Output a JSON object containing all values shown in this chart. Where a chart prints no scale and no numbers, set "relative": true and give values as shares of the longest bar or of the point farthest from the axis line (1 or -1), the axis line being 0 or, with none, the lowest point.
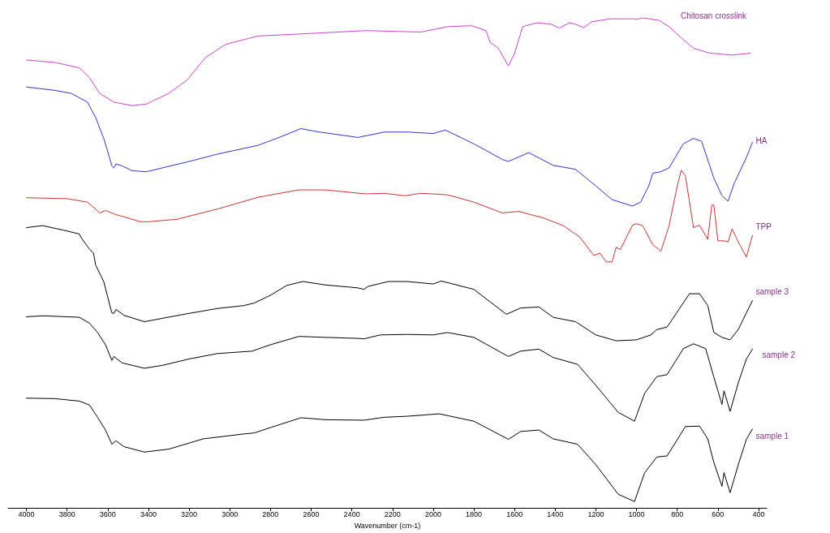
{
  "chart_data": {
    "type": "line",
    "relative": true,
    "xlabel": "Wavenumber (cm-1)",
    "xlim": [
      4090,
      360
    ],
    "xticks": [
      4000,
      3800,
      3600,
      3400,
      3200,
      3000,
      2800,
      2600,
      2400,
      2200,
      2000,
      1800,
      1600,
      1400,
      1200,
      1000,
      800,
      600,
      400
    ],
    "series": [
      {
        "name": "Chitosan crosslink",
        "color": "#cc44cc",
        "x": [
          4000,
          3860,
          3740,
          3690,
          3640,
          3570,
          3480,
          3410,
          3300,
          3210,
          3120,
          3020,
          2860,
          2660,
          2330,
          2060,
          1930,
          1810,
          1740,
          1720,
          1680,
          1630,
          1600,
          1560,
          1490,
          1420,
          1380,
          1330,
          1300,
          1260,
          1220,
          1130,
          1020,
          1000,
          970,
          890,
          840,
          780,
          720,
          640,
          530,
          440
        ],
        "values": [
          0.914,
          0.909,
          0.898,
          0.878,
          0.846,
          0.828,
          0.821,
          0.824,
          0.846,
          0.873,
          0.919,
          0.946,
          0.963,
          0.967,
          0.974,
          0.971,
          0.982,
          0.984,
          0.974,
          0.95,
          0.938,
          0.902,
          0.927,
          0.982,
          0.99,
          0.987,
          0.979,
          0.99,
          0.987,
          0.98,
          0.992,
          0.998,
          0.998,
          0.997,
          1.0,
          0.995,
          0.982,
          0.959,
          0.938,
          0.928,
          0.924,
          0.928
        ]
      },
      {
        "name": "HA",
        "color": "#3333cc",
        "x": [
          4000,
          3860,
          3780,
          3700,
          3660,
          3620,
          3600,
          3580,
          3570,
          3560,
          3530,
          3480,
          3410,
          3330,
          3200,
          3060,
          2860,
          2770,
          2650,
          2560,
          2370,
          2240,
          2130,
          2000,
          1940,
          1800,
          1660,
          1630,
          1530,
          1410,
          1300,
          1200,
          1120,
          1020,
          980,
          940,
          920,
          880,
          840,
          770,
          720,
          680,
          620,
          580,
          550,
          520,
          460,
          430
        ],
        "values": [
          0.859,
          0.852,
          0.846,
          0.828,
          0.797,
          0.754,
          0.727,
          0.698,
          0.694,
          0.702,
          0.698,
          0.688,
          0.686,
          0.694,
          0.707,
          0.722,
          0.74,
          0.754,
          0.774,
          0.767,
          0.756,
          0.767,
          0.767,
          0.764,
          0.771,
          0.743,
          0.711,
          0.707,
          0.725,
          0.699,
          0.691,
          0.657,
          0.629,
          0.616,
          0.624,
          0.657,
          0.683,
          0.686,
          0.694,
          0.743,
          0.754,
          0.748,
          0.673,
          0.637,
          0.626,
          0.662,
          0.715,
          0.746
        ]
      },
      {
        "name": "TPP",
        "color": "#cc3333",
        "x": [
          4000,
          3800,
          3700,
          3660,
          3640,
          3610,
          3570,
          3440,
          3400,
          3260,
          3060,
          2860,
          2660,
          2530,
          2340,
          2320,
          2240,
          2140,
          2060,
          1930,
          1800,
          1660,
          1580,
          1460,
          1360,
          1280,
          1210,
          1180,
          1150,
          1120,
          1100,
          1080,
          1020,
          1000,
          970,
          920,
          880,
          840,
          800,
          780,
          760,
          720,
          690,
          650,
          630,
          620,
          600,
          570,
          550,
          530,
          500,
          460,
          430
        ],
        "values": [
          0.633,
          0.631,
          0.624,
          0.61,
          0.602,
          0.607,
          0.6,
          0.584,
          0.584,
          0.589,
          0.61,
          0.634,
          0.649,
          0.649,
          0.641,
          0.641,
          0.642,
          0.637,
          0.642,
          0.639,
          0.624,
          0.602,
          0.605,
          0.592,
          0.576,
          0.553,
          0.515,
          0.52,
          0.502,
          0.502,
          0.532,
          0.527,
          0.577,
          0.58,
          0.576,
          0.537,
          0.524,
          0.576,
          0.657,
          0.689,
          0.678,
          0.572,
          0.577,
          0.548,
          0.618,
          0.618,
          0.545,
          0.545,
          0.543,
          0.569,
          0.543,
          0.512,
          0.556
        ]
      },
      {
        "name": "sample 3",
        "color": "#000000",
        "x": [
          4000,
          3920,
          3820,
          3740,
          3730,
          3690,
          3670,
          3660,
          3620,
          3580,
          3570,
          3560,
          3520,
          3420,
          3330,
          3200,
          3060,
          2930,
          2880,
          2800,
          2720,
          2640,
          2530,
          2370,
          2340,
          2320,
          2220,
          2130,
          2000,
          1960,
          1800,
          1640,
          1570,
          1480,
          1410,
          1300,
          1200,
          1100,
          1000,
          930,
          900,
          850,
          740,
          690,
          650,
          620,
          580,
          540,
          500,
          460,
          430
        ],
        "values": [
          0.572,
          0.576,
          0.567,
          0.559,
          0.551,
          0.528,
          0.52,
          0.496,
          0.462,
          0.398,
          0.397,
          0.405,
          0.393,
          0.38,
          0.387,
          0.397,
          0.407,
          0.413,
          0.418,
          0.434,
          0.454,
          0.462,
          0.455,
          0.449,
          0.446,
          0.452,
          0.462,
          0.462,
          0.457,
          0.463,
          0.446,
          0.395,
          0.408,
          0.41,
          0.389,
          0.38,
          0.353,
          0.341,
          0.343,
          0.353,
          0.364,
          0.369,
          0.437,
          0.437,
          0.413,
          0.358,
          0.348,
          0.343,
          0.364,
          0.398,
          0.423
        ]
      },
      {
        "name": "sample 2",
        "color": "#000000",
        "x": [
          4000,
          3920,
          3740,
          3690,
          3650,
          3610,
          3580,
          3570,
          3530,
          3420,
          3330,
          3200,
          3060,
          2890,
          2800,
          2660,
          2530,
          2370,
          2340,
          2260,
          2130,
          2000,
          1930,
          1800,
          1630,
          1570,
          1480,
          1410,
          1290,
          1200,
          1090,
          1010,
          960,
          900,
          850,
          770,
          720,
          660,
          620,
          580,
          570,
          540,
          500,
          460,
          430
        ],
        "values": [
          0.39,
          0.392,
          0.389,
          0.377,
          0.358,
          0.332,
          0.301,
          0.309,
          0.296,
          0.285,
          0.291,
          0.304,
          0.315,
          0.32,
          0.333,
          0.35,
          0.348,
          0.346,
          0.345,
          0.353,
          0.354,
          0.353,
          0.358,
          0.348,
          0.309,
          0.32,
          0.324,
          0.307,
          0.293,
          0.25,
          0.195,
          0.177,
          0.234,
          0.268,
          0.272,
          0.325,
          0.335,
          0.325,
          0.267,
          0.211,
          0.239,
          0.197,
          0.255,
          0.304,
          0.324
        ]
      },
      {
        "name": "sample 1",
        "color": "#000000",
        "x": [
          4000,
          3860,
          3740,
          3690,
          3650,
          3610,
          3580,
          3560,
          3520,
          3420,
          3300,
          3130,
          2930,
          2880,
          2800,
          2650,
          2530,
          2340,
          2240,
          2130,
          1970,
          1800,
          1630,
          1570,
          1480,
          1410,
          1290,
          1200,
          1090,
          1010,
          960,
          900,
          850,
          760,
          690,
          650,
          620,
          580,
          570,
          540,
          500,
          460,
          430
        ],
        "values": [
          0.224,
          0.223,
          0.218,
          0.21,
          0.185,
          0.158,
          0.13,
          0.137,
          0.125,
          0.114,
          0.12,
          0.141,
          0.151,
          0.153,
          0.164,
          0.184,
          0.18,
          0.179,
          0.185,
          0.187,
          0.192,
          0.177,
          0.14,
          0.156,
          0.159,
          0.141,
          0.13,
          0.088,
          0.028,
          0.013,
          0.072,
          0.104,
          0.106,
          0.166,
          0.167,
          0.141,
          0.093,
          0.044,
          0.072,
          0.031,
          0.088,
          0.14,
          0.161
        ]
      }
    ]
  }
}
